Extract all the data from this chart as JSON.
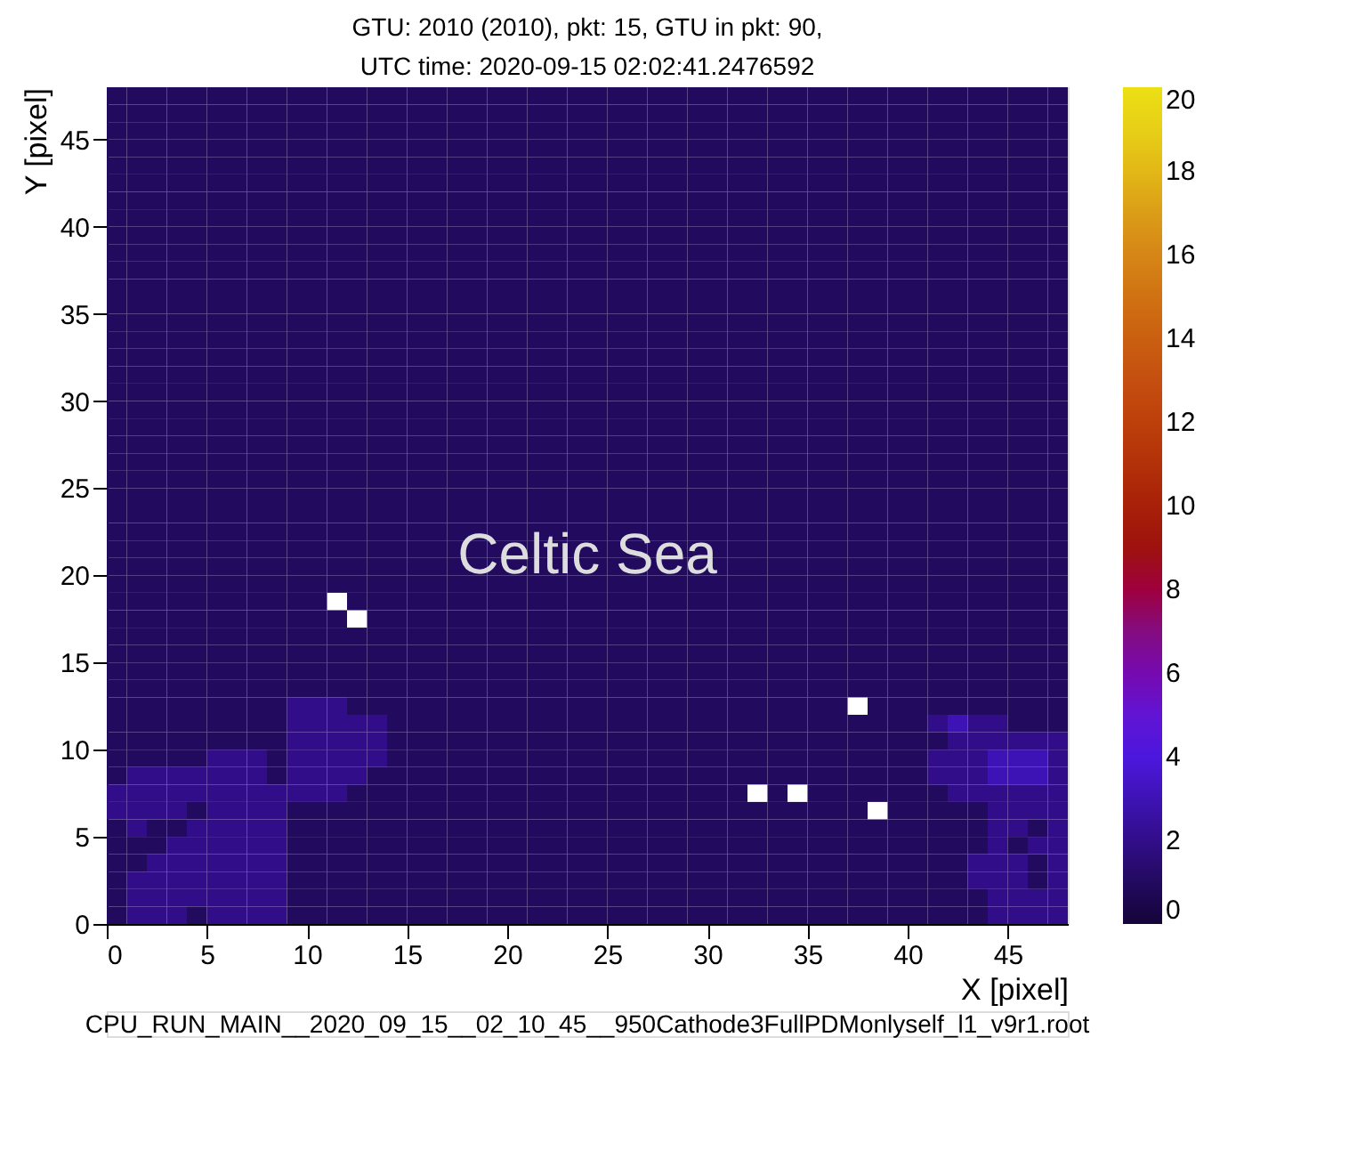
{
  "chart_data": {
    "type": "heatmap",
    "title": "GTU: 2010 (2010), pkt: 15, GTU in pkt: 90,",
    "subtitle": "UTC time: 2020-09-15 02:02:41.2476592",
    "xlabel": "X [pixel]",
    "ylabel": "Y [pixel]",
    "xlim": [
      0,
      48
    ],
    "ylim": [
      0,
      48
    ],
    "xticks": [
      0,
      5,
      10,
      15,
      20,
      25,
      30,
      35,
      40,
      45
    ],
    "yticks": [
      0,
      5,
      10,
      15,
      20,
      25,
      30,
      35,
      40,
      45
    ],
    "clim": [
      0,
      20
    ],
    "cticks": [
      0,
      2,
      4,
      6,
      8,
      10,
      12,
      14,
      16,
      18,
      20
    ],
    "grid": false,
    "annotations": [
      "Celtic Sea",
      "CPU_RUN_MAIN__2020_09_15__02_10_45__950Cathode3FullPDMonlyself_l1_v9r1.root"
    ],
    "cells": [
      [
        1,
        1,
        1,
        1,
        1,
        1,
        1,
        1,
        1,
        1,
        1,
        1,
        1,
        1,
        1,
        1,
        1,
        1,
        1,
        1,
        1,
        1,
        1,
        1,
        1,
        1,
        1,
        1,
        1,
        1,
        1,
        1,
        1,
        1,
        1,
        1,
        1,
        1,
        1,
        1,
        1,
        1,
        1,
        1,
        1,
        1,
        1,
        1
      ],
      [
        1,
        1,
        1,
        1,
        1,
        1,
        1,
        1,
        1,
        1,
        1,
        1,
        1,
        1,
        1,
        1,
        1,
        1,
        1,
        1,
        1,
        1,
        1,
        1,
        1,
        1,
        1,
        1,
        1,
        1,
        1,
        1,
        1,
        1,
        1,
        1,
        1,
        1,
        1,
        1,
        1,
        1,
        1,
        1,
        1,
        1,
        1,
        1
      ],
      [
        1,
        1,
        1,
        1,
        1,
        1,
        1,
        1,
        1,
        1,
        1,
        1,
        1,
        1,
        1,
        1,
        1,
        1,
        1,
        1,
        1,
        1,
        1,
        1,
        1,
        1,
        1,
        1,
        1,
        1,
        1,
        1,
        1,
        1,
        1,
        1,
        1,
        1,
        1,
        1,
        1,
        1,
        1,
        1,
        1,
        1,
        1,
        1
      ],
      [
        1,
        1,
        1,
        1,
        1,
        1,
        1,
        1,
        1,
        1,
        1,
        1,
        1,
        1,
        1,
        1,
        1,
        1,
        1,
        1,
        1,
        1,
        1,
        1,
        1,
        1,
        1,
        1,
        1,
        1,
        1,
        1,
        1,
        1,
        1,
        1,
        1,
        1,
        1,
        1,
        1,
        1,
        1,
        1,
        1,
        1,
        1,
        1
      ],
      [
        1,
        1,
        1,
        1,
        1,
        1,
        1,
        1,
        1,
        1,
        1,
        1,
        1,
        1,
        1,
        1,
        1,
        1,
        1,
        1,
        1,
        1,
        1,
        1,
        1,
        1,
        1,
        1,
        1,
        1,
        1,
        1,
        1,
        1,
        1,
        1,
        1,
        1,
        1,
        1,
        1,
        1,
        1,
        1,
        1,
        1,
        1,
        1
      ],
      [
        1,
        1,
        1,
        1,
        1,
        1,
        1,
        1,
        1,
        1,
        1,
        1,
        1,
        1,
        1,
        1,
        1,
        1,
        1,
        1,
        1,
        1,
        1,
        1,
        1,
        1,
        1,
        1,
        1,
        1,
        1,
        1,
        1,
        1,
        1,
        1,
        1,
        1,
        1,
        1,
        1,
        1,
        1,
        1,
        1,
        1,
        1,
        1
      ],
      [
        1,
        1,
        1,
        1,
        1,
        1,
        1,
        1,
        1,
        1,
        1,
        1,
        1,
        1,
        1,
        1,
        1,
        1,
        1,
        1,
        1,
        1,
        1,
        1,
        1,
        1,
        1,
        1,
        1,
        1,
        1,
        1,
        1,
        1,
        1,
        1,
        1,
        1,
        1,
        1,
        1,
        1,
        1,
        1,
        1,
        1,
        1,
        1
      ],
      [
        1,
        1,
        1,
        1,
        1,
        1,
        1,
        1,
        1,
        1,
        1,
        1,
        1,
        1,
        1,
        1,
        1,
        1,
        1,
        1,
        1,
        1,
        1,
        1,
        1,
        1,
        1,
        1,
        1,
        1,
        1,
        1,
        1,
        1,
        1,
        1,
        1,
        1,
        1,
        1,
        1,
        1,
        1,
        1,
        1,
        1,
        1,
        1
      ],
      [
        1,
        1,
        1,
        1,
        1,
        1,
        1,
        1,
        1,
        1,
        1,
        1,
        1,
        1,
        1,
        1,
        1,
        1,
        1,
        1,
        1,
        1,
        1,
        1,
        1,
        1,
        1,
        1,
        1,
        1,
        1,
        1,
        1,
        1,
        1,
        1,
        1,
        1,
        1,
        1,
        1,
        1,
        1,
        1,
        1,
        1,
        1,
        1
      ],
      [
        1,
        1,
        1,
        1,
        1,
        1,
        1,
        1,
        1,
        1,
        1,
        1,
        1,
        1,
        1,
        1,
        1,
        1,
        1,
        1,
        1,
        1,
        1,
        1,
        1,
        1,
        1,
        1,
        1,
        1,
        1,
        1,
        1,
        1,
        1,
        1,
        1,
        1,
        1,
        1,
        1,
        1,
        1,
        1,
        1,
        1,
        1,
        1
      ],
      [
        1,
        1,
        1,
        1,
        1,
        1,
        1,
        1,
        1,
        1,
        1,
        1,
        1,
        1,
        1,
        1,
        1,
        1,
        1,
        1,
        1,
        1,
        1,
        1,
        1,
        1,
        1,
        1,
        1,
        1,
        1,
        1,
        1,
        1,
        1,
        1,
        1,
        1,
        1,
        1,
        1,
        1,
        1,
        1,
        1,
        1,
        1,
        1
      ],
      [
        1,
        1,
        1,
        1,
        1,
        1,
        1,
        1,
        1,
        1,
        1,
        1,
        1,
        1,
        1,
        1,
        1,
        1,
        1,
        1,
        1,
        1,
        1,
        1,
        1,
        1,
        1,
        1,
        1,
        1,
        1,
        1,
        1,
        1,
        1,
        1,
        1,
        1,
        1,
        1,
        1,
        1,
        1,
        1,
        1,
        1,
        1,
        1
      ],
      [
        1,
        1,
        1,
        1,
        1,
        1,
        1,
        1,
        1,
        1,
        1,
        1,
        1,
        1,
        1,
        1,
        1,
        1,
        1,
        1,
        1,
        1,
        1,
        1,
        1,
        1,
        1,
        1,
        1,
        1,
        1,
        1,
        1,
        1,
        1,
        1,
        1,
        1,
        1,
        1,
        1,
        1,
        1,
        1,
        1,
        1,
        1,
        1
      ],
      [
        1,
        1,
        1,
        1,
        1,
        1,
        1,
        1,
        1,
        1,
        1,
        1,
        1,
        1,
        1,
        1,
        1,
        1,
        1,
        1,
        1,
        1,
        1,
        1,
        1,
        1,
        1,
        1,
        1,
        1,
        1,
        1,
        1,
        1,
        1,
        1,
        1,
        1,
        1,
        1,
        1,
        1,
        1,
        1,
        1,
        1,
        1,
        1
      ],
      [
        1,
        1,
        1,
        1,
        1,
        1,
        1,
        1,
        1,
        1,
        1,
        1,
        1,
        1,
        1,
        1,
        1,
        1,
        1,
        1,
        1,
        1,
        1,
        1,
        1,
        1,
        1,
        1,
        1,
        1,
        1,
        1,
        1,
        1,
        1,
        1,
        1,
        1,
        1,
        1,
        1,
        1,
        1,
        1,
        1,
        1,
        1,
        1
      ],
      [
        1,
        1,
        1,
        1,
        1,
        1,
        1,
        1,
        1,
        1,
        1,
        1,
        1,
        1,
        1,
        1,
        1,
        1,
        1,
        1,
        1,
        1,
        1,
        1,
        1,
        1,
        1,
        1,
        1,
        1,
        1,
        1,
        1,
        1,
        1,
        1,
        1,
        1,
        1,
        1,
        1,
        1,
        1,
        1,
        1,
        1,
        1,
        1
      ],
      [
        1,
        1,
        1,
        1,
        1,
        1,
        1,
        1,
        1,
        1,
        1,
        1,
        1,
        1,
        1,
        1,
        1,
        1,
        1,
        1,
        1,
        1,
        1,
        1,
        1,
        1,
        1,
        1,
        1,
        1,
        1,
        1,
        1,
        1,
        1,
        1,
        1,
        1,
        1,
        1,
        1,
        1,
        1,
        1,
        1,
        1,
        1,
        1
      ],
      [
        1,
        1,
        1,
        1,
        1,
        1,
        1,
        1,
        1,
        1,
        1,
        1,
        1,
        1,
        1,
        1,
        1,
        1,
        1,
        1,
        1,
        1,
        1,
        1,
        1,
        1,
        1,
        1,
        1,
        1,
        1,
        1,
        1,
        1,
        1,
        1,
        1,
        1,
        1,
        1,
        1,
        1,
        1,
        1,
        1,
        1,
        1,
        1
      ],
      [
        1,
        1,
        1,
        1,
        1,
        1,
        1,
        1,
        1,
        1,
        1,
        1,
        1,
        1,
        1,
        1,
        1,
        1,
        1,
        1,
        1,
        1,
        1,
        1,
        1,
        1,
        1,
        1,
        1,
        1,
        1,
        1,
        1,
        1,
        1,
        1,
        1,
        1,
        1,
        1,
        1,
        1,
        1,
        1,
        1,
        1,
        1,
        1
      ],
      [
        1,
        1,
        1,
        1,
        1,
        1,
        1,
        1,
        1,
        1,
        1,
        1,
        1,
        1,
        1,
        1,
        1,
        1,
        1,
        1,
        1,
        1,
        1,
        1,
        1,
        1,
        1,
        1,
        1,
        1,
        1,
        1,
        1,
        1,
        1,
        1,
        1,
        1,
        1,
        1,
        1,
        1,
        1,
        1,
        1,
        1,
        1,
        1
      ],
      [
        1,
        1,
        1,
        1,
        1,
        1,
        1,
        1,
        1,
        1,
        1,
        1,
        1,
        1,
        1,
        1,
        1,
        1,
        1,
        1,
        1,
        1,
        1,
        1,
        1,
        1,
        1,
        1,
        1,
        1,
        1,
        1,
        1,
        1,
        1,
        1,
        1,
        1,
        1,
        1,
        1,
        1,
        1,
        1,
        1,
        1,
        1,
        1
      ],
      [
        1,
        1,
        1,
        1,
        1,
        1,
        1,
        1,
        1,
        1,
        1,
        1,
        1,
        1,
        1,
        1,
        1,
        1,
        1,
        1,
        1,
        1,
        1,
        1,
        1,
        1,
        1,
        1,
        1,
        1,
        1,
        1,
        1,
        1,
        1,
        1,
        1,
        1,
        1,
        1,
        1,
        1,
        1,
        1,
        1,
        1,
        1,
        1
      ],
      [
        1,
        1,
        1,
        1,
        1,
        1,
        1,
        1,
        1,
        1,
        1,
        1,
        1,
        1,
        1,
        1,
        1,
        1,
        1,
        1,
        1,
        1,
        1,
        1,
        1,
        1,
        1,
        1,
        1,
        1,
        1,
        1,
        1,
        1,
        1,
        1,
        1,
        1,
        1,
        1,
        1,
        1,
        1,
        1,
        1,
        1,
        1,
        1
      ],
      [
        1,
        1,
        1,
        1,
        1,
        1,
        1,
        1,
        1,
        1,
        1,
        1,
        1,
        1,
        1,
        1,
        1,
        1,
        1,
        1,
        1,
        1,
        1,
        1,
        1,
        1,
        1,
        1,
        1,
        1,
        1,
        1,
        1,
        1,
        1,
        1,
        1,
        1,
        1,
        1,
        1,
        1,
        1,
        1,
        1,
        1,
        1,
        1
      ],
      [
        1,
        1,
        1,
        1,
        1,
        1,
        1,
        1,
        1,
        1,
        1,
        1,
        1,
        1,
        1,
        1,
        1,
        1,
        1,
        1,
        1,
        1,
        1,
        1,
        1,
        1,
        1,
        1,
        1,
        1,
        1,
        1,
        1,
        1,
        1,
        1,
        1,
        1,
        1,
        1,
        1,
        1,
        1,
        1,
        1,
        1,
        1,
        1
      ],
      [
        1,
        1,
        1,
        1,
        1,
        1,
        1,
        1,
        1,
        1,
        1,
        1,
        1,
        1,
        1,
        1,
        1,
        1,
        1,
        1,
        1,
        1,
        1,
        1,
        1,
        1,
        1,
        1,
        1,
        1,
        1,
        1,
        1,
        1,
        1,
        1,
        1,
        1,
        1,
        1,
        1,
        1,
        1,
        1,
        1,
        1,
        1,
        1
      ],
      [
        1,
        1,
        1,
        1,
        1,
        1,
        1,
        1,
        1,
        1,
        1,
        1,
        1,
        1,
        1,
        1,
        1,
        1,
        1,
        1,
        1,
        1,
        1,
        1,
        1,
        1,
        1,
        1,
        1,
        1,
        1,
        1,
        1,
        1,
        1,
        1,
        1,
        1,
        1,
        1,
        1,
        1,
        1,
        1,
        1,
        1,
        1,
        1
      ],
      [
        1,
        1,
        1,
        1,
        1,
        1,
        1,
        1,
        1,
        1,
        1,
        1,
        1,
        1,
        1,
        1,
        1,
        1,
        1,
        1,
        1,
        1,
        1,
        1,
        1,
        1,
        1,
        1,
        1,
        1,
        1,
        1,
        1,
        1,
        1,
        1,
        1,
        1,
        1,
        1,
        1,
        1,
        1,
        1,
        1,
        1,
        1,
        1
      ],
      [
        1,
        1,
        1,
        1,
        1,
        1,
        1,
        1,
        1,
        1,
        1,
        1,
        1,
        1,
        1,
        1,
        1,
        1,
        1,
        1,
        1,
        1,
        1,
        1,
        1,
        1,
        1,
        1,
        1,
        1,
        1,
        1,
        1,
        1,
        1,
        1,
        1,
        1,
        1,
        1,
        1,
        1,
        1,
        1,
        1,
        1,
        1,
        1
      ],
      [
        1,
        1,
        1,
        1,
        1,
        1,
        1,
        1,
        1,
        1,
        1,
        null,
        1,
        1,
        1,
        1,
        1,
        1,
        1,
        1,
        1,
        1,
        1,
        1,
        1,
        1,
        1,
        1,
        1,
        1,
        1,
        1,
        1,
        1,
        1,
        1,
        1,
        1,
        1,
        1,
        1,
        1,
        1,
        1,
        1,
        1,
        1,
        1
      ],
      [
        1,
        1,
        1,
        1,
        1,
        1,
        1,
        1,
        1,
        1,
        1,
        1,
        null,
        1,
        1,
        1,
        1,
        1,
        1,
        1,
        1,
        1,
        1,
        1,
        1,
        1,
        1,
        1,
        1,
        1,
        1,
        1,
        1,
        1,
        1,
        1,
        1,
        1,
        1,
        1,
        1,
        1,
        1,
        1,
        1,
        1,
        1,
        1
      ],
      [
        1,
        1,
        1,
        1,
        1,
        1,
        1,
        1,
        1,
        1,
        1,
        1,
        1,
        1,
        1,
        1,
        1,
        1,
        1,
        1,
        1,
        1,
        1,
        1,
        1,
        1,
        1,
        1,
        1,
        1,
        1,
        1,
        1,
        1,
        1,
        1,
        1,
        1,
        1,
        1,
        1,
        1,
        1,
        1,
        1,
        1,
        1,
        1
      ],
      [
        1,
        1,
        1,
        1,
        1,
        1,
        1,
        1,
        1,
        1,
        1,
        1,
        1,
        1,
        1,
        1,
        1,
        1,
        1,
        1,
        1,
        1,
        1,
        1,
        1,
        1,
        1,
        1,
        1,
        1,
        1,
        1,
        1,
        1,
        1,
        1,
        1,
        1,
        1,
        1,
        1,
        1,
        1,
        1,
        1,
        1,
        1,
        1
      ],
      [
        1,
        1,
        1,
        1,
        1,
        1,
        1,
        1,
        1,
        1,
        1,
        1,
        1,
        1,
        1,
        1,
        1,
        1,
        1,
        1,
        1,
        1,
        1,
        1,
        1,
        1,
        1,
        1,
        1,
        1,
        1,
        1,
        1,
        1,
        1,
        1,
        1,
        1,
        1,
        1,
        1,
        1,
        1,
        1,
        1,
        1,
        1,
        1
      ],
      [
        1,
        1,
        1,
        1,
        1,
        1,
        1,
        1,
        1,
        1,
        1,
        1,
        1,
        1,
        1,
        1,
        1,
        1,
        1,
        1,
        1,
        1,
        1,
        1,
        1,
        1,
        1,
        1,
        1,
        1,
        1,
        1,
        1,
        1,
        1,
        1,
        1,
        1,
        1,
        1,
        1,
        1,
        1,
        1,
        1,
        1,
        1,
        1
      ],
      [
        1,
        1,
        1,
        1,
        1,
        1,
        1,
        1,
        1,
        2,
        2,
        2,
        1,
        1,
        1,
        1,
        1,
        1,
        1,
        1,
        1,
        1,
        1,
        1,
        1,
        1,
        1,
        1,
        1,
        1,
        1,
        1,
        1,
        1,
        1,
        1,
        1,
        null,
        1,
        1,
        1,
        1,
        1,
        1,
        1,
        1,
        1,
        1
      ],
      [
        1,
        1,
        1,
        1,
        1,
        1,
        1,
        1,
        1,
        2,
        2,
        2,
        2,
        2,
        1,
        1,
        1,
        1,
        1,
        1,
        1,
        1,
        1,
        1,
        1,
        1,
        1,
        1,
        1,
        1,
        1,
        1,
        1,
        1,
        1,
        1,
        1,
        1,
        1,
        1,
        1,
        2,
        3,
        2,
        2,
        1,
        1,
        1
      ],
      [
        1,
        1,
        1,
        1,
        1,
        1,
        1,
        1,
        1,
        2,
        2,
        2,
        2,
        2,
        1,
        1,
        1,
        1,
        1,
        1,
        1,
        1,
        1,
        1,
        1,
        1,
        1,
        1,
        1,
        1,
        1,
        1,
        1,
        1,
        1,
        1,
        1,
        1,
        1,
        1,
        1,
        1,
        2,
        2,
        2,
        2,
        2,
        2
      ],
      [
        1,
        1,
        1,
        1,
        1,
        2,
        2,
        2,
        1,
        2,
        2,
        2,
        2,
        2,
        1,
        1,
        1,
        1,
        1,
        1,
        1,
        1,
        1,
        1,
        1,
        1,
        1,
        1,
        1,
        1,
        1,
        1,
        1,
        1,
        1,
        1,
        1,
        1,
        1,
        1,
        1,
        2,
        2,
        2,
        3,
        3,
        3,
        2
      ],
      [
        1,
        2,
        2,
        2,
        2,
        2,
        2,
        2,
        1,
        2,
        2,
        2,
        2,
        1,
        1,
        1,
        1,
        1,
        1,
        1,
        1,
        1,
        1,
        1,
        1,
        1,
        1,
        1,
        1,
        1,
        1,
        1,
        1,
        1,
        1,
        1,
        1,
        1,
        1,
        1,
        1,
        2,
        2,
        2,
        3,
        3,
        3,
        2
      ],
      [
        2,
        2,
        2,
        2,
        2,
        2,
        2,
        2,
        2,
        2,
        2,
        2,
        1,
        1,
        1,
        1,
        1,
        1,
        1,
        1,
        1,
        1,
        1,
        1,
        1,
        1,
        1,
        1,
        1,
        1,
        1,
        1,
        null,
        1,
        null,
        1,
        1,
        1,
        1,
        1,
        1,
        1,
        2,
        2,
        2,
        2,
        2,
        2
      ],
      [
        2,
        2,
        2,
        2,
        1,
        2,
        2,
        2,
        2,
        1,
        1,
        1,
        1,
        1,
        1,
        1,
        1,
        1,
        1,
        1,
        1,
        1,
        1,
        1,
        1,
        1,
        1,
        1,
        1,
        1,
        1,
        1,
        1,
        1,
        1,
        1,
        1,
        1,
        null,
        1,
        1,
        1,
        1,
        1,
        2,
        2,
        2,
        2
      ],
      [
        1,
        2,
        1,
        1,
        2,
        2,
        2,
        2,
        2,
        1,
        1,
        1,
        1,
        1,
        1,
        1,
        1,
        1,
        1,
        1,
        1,
        1,
        1,
        1,
        1,
        1,
        1,
        1,
        1,
        1,
        1,
        1,
        1,
        1,
        1,
        1,
        1,
        1,
        1,
        1,
        1,
        1,
        1,
        1,
        2,
        2,
        1,
        2
      ],
      [
        1,
        1,
        1,
        2,
        2,
        2,
        2,
        2,
        2,
        1,
        1,
        1,
        1,
        1,
        1,
        1,
        1,
        1,
        1,
        1,
        1,
        1,
        1,
        1,
        1,
        1,
        1,
        1,
        1,
        1,
        1,
        1,
        1,
        1,
        1,
        1,
        1,
        1,
        1,
        1,
        1,
        1,
        1,
        1,
        2,
        1,
        2,
        2
      ],
      [
        1,
        1,
        2,
        2,
        2,
        2,
        2,
        2,
        2,
        1,
        1,
        1,
        1,
        1,
        1,
        1,
        1,
        1,
        1,
        1,
        1,
        1,
        1,
        1,
        1,
        1,
        1,
        1,
        1,
        1,
        1,
        1,
        1,
        1,
        1,
        1,
        1,
        1,
        1,
        1,
        1,
        1,
        1,
        2,
        2,
        2,
        1,
        2
      ],
      [
        1,
        2,
        2,
        2,
        2,
        2,
        2,
        2,
        2,
        1,
        1,
        1,
        1,
        1,
        1,
        1,
        1,
        1,
        1,
        1,
        1,
        1,
        1,
        1,
        1,
        1,
        1,
        1,
        1,
        1,
        1,
        1,
        1,
        1,
        1,
        1,
        1,
        1,
        1,
        1,
        1,
        1,
        1,
        2,
        2,
        2,
        1,
        2
      ],
      [
        1,
        2,
        2,
        2,
        2,
        2,
        2,
        2,
        2,
        1,
        1,
        1,
        1,
        1,
        1,
        1,
        1,
        1,
        1,
        1,
        1,
        1,
        1,
        1,
        1,
        1,
        1,
        1,
        1,
        1,
        1,
        1,
        1,
        1,
        1,
        1,
        1,
        1,
        1,
        1,
        1,
        1,
        1,
        1,
        2,
        2,
        2,
        2
      ],
      [
        1,
        2,
        2,
        2,
        1,
        2,
        2,
        2,
        2,
        1,
        1,
        1,
        1,
        1,
        1,
        1,
        1,
        1,
        1,
        1,
        1,
        1,
        1,
        1,
        1,
        1,
        1,
        1,
        1,
        1,
        1,
        1,
        1,
        1,
        1,
        1,
        1,
        1,
        1,
        1,
        1,
        1,
        1,
        1,
        2,
        2,
        2,
        2
      ]
    ]
  }
}
